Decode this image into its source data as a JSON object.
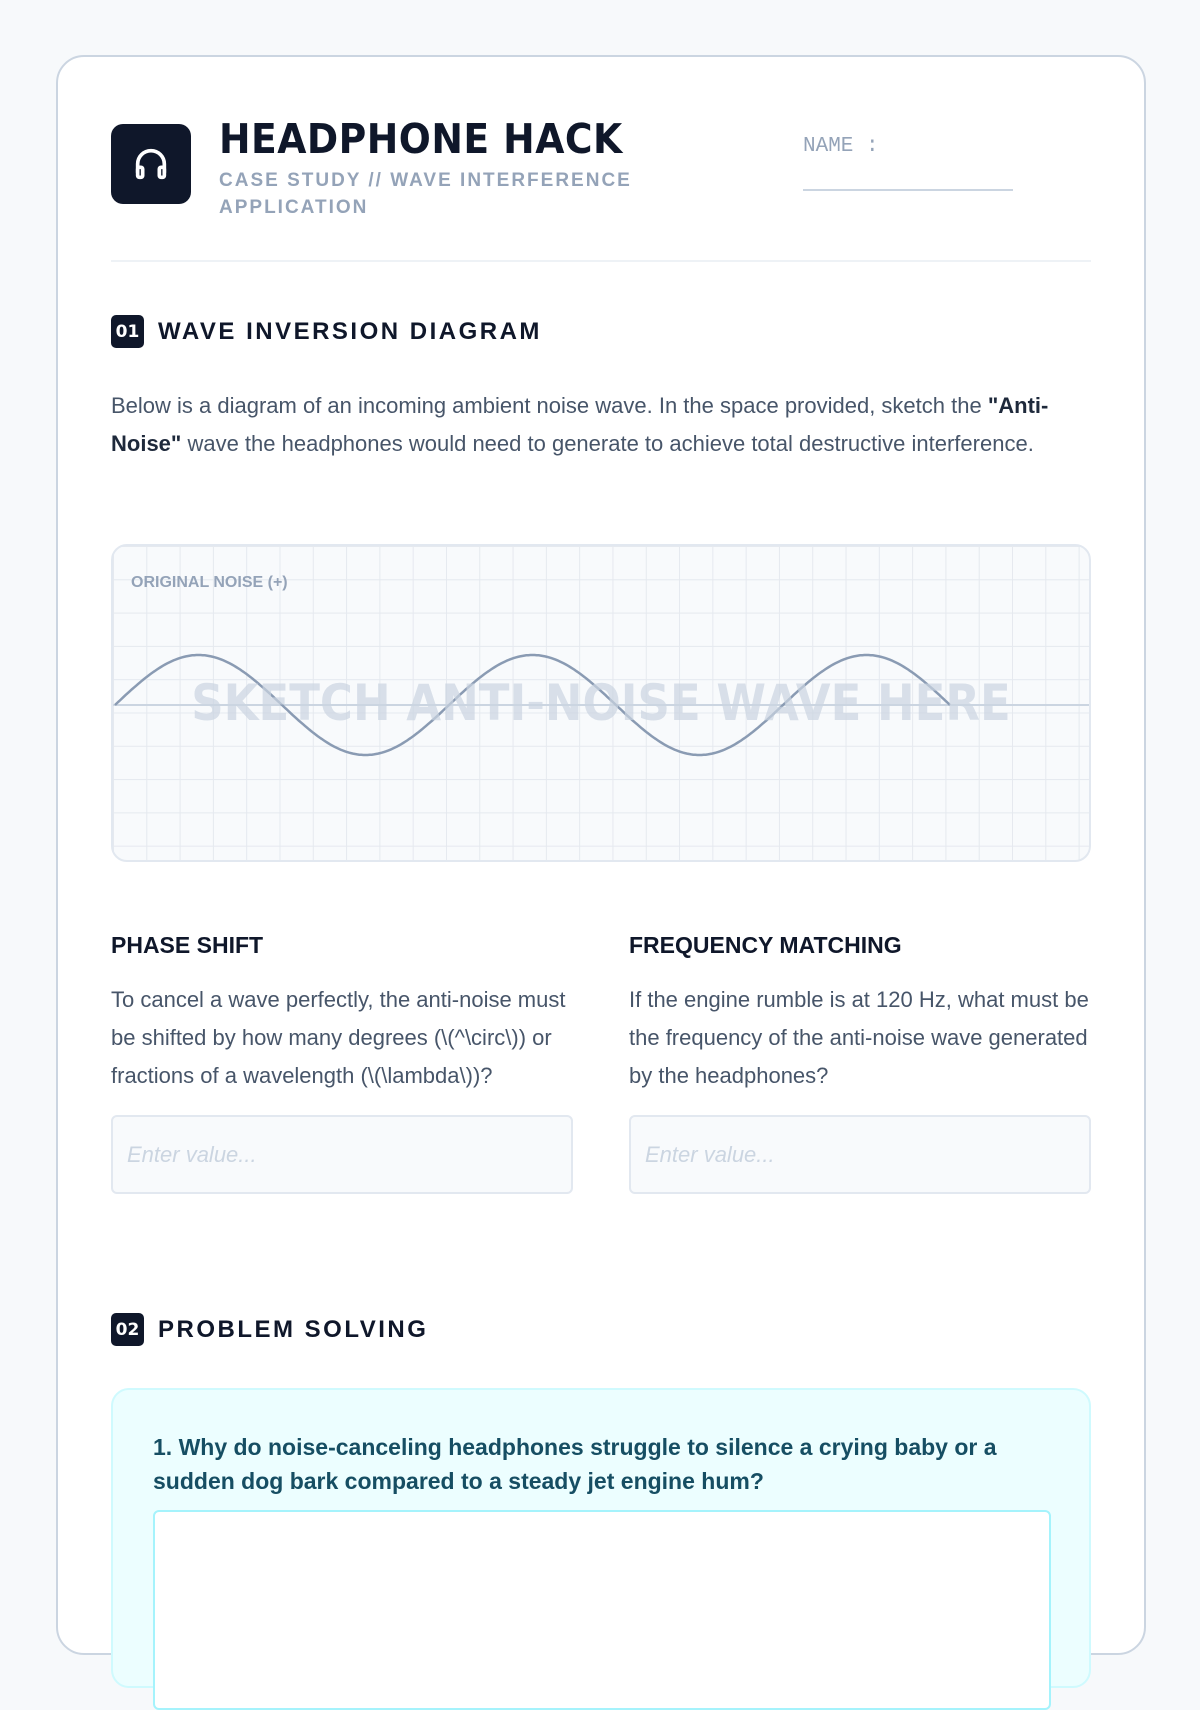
{
  "header": {
    "title": "HEADPHONE HACK",
    "subtitle": "CASE STUDY // WAVE INTERFERENCE APPLICATION",
    "name_label": "NAME :",
    "icon": "headphones-icon"
  },
  "section1": {
    "number": "01",
    "title": "WAVE INVERSION DIAGRAM",
    "intro_before": "Below is a diagram of an incoming ambient noise wave. In the space provided, sketch the ",
    "intro_bold": "\"Anti-Noise\"",
    "intro_after": " wave the headphones would need to generate to achieve total destructive interference.",
    "diagram": {
      "label": "ORIGINAL NOISE (+)",
      "watermark": "SKETCH ANTI-NOISE WAVE HERE",
      "cycles": 2.5
    },
    "phase": {
      "title": "PHASE SHIFT",
      "question": "To cancel a wave perfectly, the anti-noise must be shifted by how many degrees (\\(^\\circ\\)) or fractions of a wavelength (\\(\\lambda\\))?",
      "placeholder": "Enter value..."
    },
    "frequency": {
      "title": "FREQUENCY MATCHING",
      "question": "If the engine rumble is at 120 Hz, what must be the frequency of the anti-noise wave generated by the headphones?",
      "placeholder": "Enter value..."
    }
  },
  "section2": {
    "number": "02",
    "title": "PROBLEM SOLVING",
    "questions": [
      {
        "text": "1. Why do noise-canceling headphones struggle to silence a crying baby or a sudden dog bark compared to a steady jet engine hum?"
      }
    ]
  }
}
